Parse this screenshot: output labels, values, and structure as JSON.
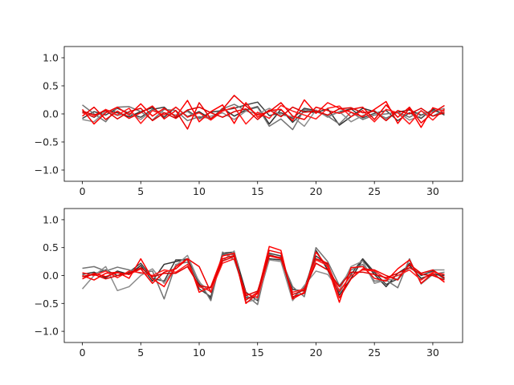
{
  "chart_data": [
    {
      "type": "line",
      "title": "",
      "xlabel": "",
      "ylabel": "",
      "xlim": [
        -1.55,
        32.55
      ],
      "ylim": [
        -1.2,
        1.2
      ],
      "xticks": [
        0,
        5,
        10,
        15,
        20,
        25,
        30
      ],
      "yticks": [
        -1.0,
        -0.5,
        0.0,
        0.5,
        1.0
      ],
      "xtick_labels": [
        "0",
        "5",
        "10",
        "15",
        "20",
        "25",
        "30"
      ],
      "ytick_labels": [
        "−1.0",
        "−0.5",
        "0.0",
        "0.5",
        "1.0"
      ],
      "grid": false,
      "x": [
        0,
        1,
        2,
        3,
        4,
        5,
        6,
        7,
        8,
        9,
        10,
        11,
        12,
        13,
        14,
        15,
        16,
        17,
        18,
        19,
        20,
        21,
        22,
        23,
        24,
        25,
        26,
        27,
        28,
        29,
        30,
        31
      ],
      "series": [
        {
          "color": "#333333",
          "values": [
            0.03,
            -0.06,
            0.07,
            0.02,
            -0.05,
            0.04,
            0.11,
            -0.06,
            0.12,
            -0.05,
            0.04,
            -0.09,
            0.1,
            -0.04,
            0.07,
            0.13,
            -0.18,
            0.08,
            -0.15,
            0.05,
            0.02,
            0.09,
            -0.2,
            -0.05,
            0.1,
            0.04,
            -0.08,
            0.03,
            0.07,
            -0.02,
            0.06,
            0.01
          ]
        },
        {
          "color": "#404040",
          "values": [
            -0.08,
            0.04,
            -0.02,
            0.1,
            0.01,
            -0.06,
            0.08,
            0.12,
            -0.06,
            0.06,
            -0.08,
            0.03,
            0.06,
            0.1,
            0.16,
            0.21,
            -0.03,
            0.02,
            -0.08,
            0.1,
            0.06,
            -0.05,
            0.04,
            0.09,
            -0.07,
            0.01,
            0.06,
            -0.12,
            0.02,
            -0.08,
            0.09,
            -0.02
          ]
        },
        {
          "color": "#737373",
          "values": [
            0.16,
            0.0,
            -0.14,
            0.12,
            0.13,
            0.04,
            -0.11,
            0.08,
            0.06,
            -0.12,
            -0.05,
            -0.08,
            0.09,
            0.17,
            0.06,
            0.12,
            -0.22,
            -0.09,
            -0.28,
            0.08,
            0.04,
            -0.04,
            -0.18,
            0.03,
            -0.1,
            -0.02,
            0.0,
            0.03,
            -0.06,
            0.05,
            -0.04,
            0.07
          ]
        },
        {
          "color": "#8c8c8c",
          "values": [
            -0.1,
            -0.14,
            0.05,
            -0.03,
            0.02,
            -0.1,
            0.07,
            0.02,
            -0.02,
            0.04,
            -0.09,
            -0.04,
            0.02,
            -0.1,
            0.05,
            0.0,
            0.1,
            -0.02,
            -0.05,
            -0.22,
            0.07,
            -0.06,
            0.04,
            -0.14,
            -0.03,
            0.06,
            -0.09,
            0.03,
            -0.11,
            -0.03,
            0.04,
            0.1
          ]
        },
        {
          "color": "#ff0000",
          "values": [
            0.08,
            -0.18,
            0.02,
            0.12,
            -0.02,
            0.18,
            -0.04,
            0.1,
            -0.05,
            0.24,
            -0.14,
            0.04,
            0.16,
            -0.17,
            0.2,
            -0.06,
            0.06,
            0.08,
            -0.12,
            0.25,
            0.01,
            0.2,
            0.1,
            0.03,
            -0.05,
            0.08,
            0.22,
            -0.17,
            0.1,
            -0.24,
            0.11,
            0.04
          ]
        },
        {
          "color": "#ee0000",
          "values": [
            -0.04,
            0.12,
            -0.1,
            0.05,
            -0.08,
            0.02,
            0.14,
            -0.09,
            0.06,
            -0.27,
            0.2,
            -0.09,
            0.08,
            0.33,
            0.14,
            -0.02,
            0.04,
            0.2,
            -0.04,
            -0.1,
            0.12,
            0.06,
            0.01,
            0.08,
            0.12,
            -0.1,
            0.16,
            -0.06,
            0.12,
            -0.16,
            0.02,
            0.15
          ]
        },
        {
          "color": "#ff1a1a",
          "values": [
            0.02,
            -0.05,
            0.08,
            -0.02,
            0.1,
            -0.17,
            0.06,
            -0.02,
            0.12,
            -0.06,
            0.02,
            -0.11,
            0.05,
            0.12,
            -0.18,
            0.03,
            -0.08,
            0.15,
            0.05,
            -0.02,
            -0.09,
            0.1,
            0.14,
            -0.05,
            0.06,
            -0.14,
            0.08,
            0.02,
            -0.18,
            0.06,
            -0.11,
            0.09
          ]
        },
        {
          "color": "#dd0000",
          "values": [
            0.05,
            -0.02,
            0.06,
            -0.09,
            0.04,
            0.1,
            -0.12,
            0.02,
            -0.08,
            0.07,
            0.12,
            0.02,
            -0.06,
            0.04,
            0.09,
            -0.1,
            0.07,
            -0.05,
            0.12,
            0.03,
            0.05,
            -0.02,
            0.09,
            0.11,
            0.02,
            0.05,
            -0.12,
            0.06,
            0.0,
            0.1,
            -0.04,
            0.02
          ]
        }
      ]
    },
    {
      "type": "line",
      "title": "",
      "xlabel": "",
      "ylabel": "",
      "xlim": [
        -1.55,
        32.55
      ],
      "ylim": [
        -1.2,
        1.2
      ],
      "xticks": [
        0,
        5,
        10,
        15,
        20,
        25,
        30
      ],
      "yticks": [
        -1.0,
        -0.5,
        0.0,
        0.5,
        1.0
      ],
      "xtick_labels": [
        "0",
        "5",
        "10",
        "15",
        "20",
        "25",
        "30"
      ],
      "ytick_labels": [
        "−1.0",
        "−0.5",
        "0.0",
        "0.5",
        "1.0"
      ],
      "grid": false,
      "x": [
        0,
        1,
        2,
        3,
        4,
        5,
        6,
        7,
        8,
        9,
        10,
        11,
        12,
        13,
        14,
        15,
        16,
        17,
        18,
        19,
        20,
        21,
        22,
        23,
        24,
        25,
        26,
        27,
        28,
        29,
        30,
        31
      ],
      "series": [
        {
          "color": "#333333",
          "values": [
            0.02,
            0.06,
            -0.04,
            0.08,
            0.02,
            0.18,
            -0.1,
            0.2,
            0.25,
            0.3,
            -0.15,
            -0.42,
            0.4,
            0.42,
            -0.3,
            -0.45,
            0.3,
            0.28,
            -0.25,
            -0.28,
            0.45,
            0.1,
            -0.35,
            -0.05,
            0.28,
            0.02,
            -0.2,
            0.04,
            0.18,
            -0.05,
            0.02,
            0.0
          ]
        },
        {
          "color": "#404040",
          "values": [
            -0.02,
            0.03,
            0.1,
            0.0,
            0.06,
            0.22,
            -0.05,
            -0.1,
            0.28,
            0.28,
            -0.24,
            -0.38,
            0.38,
            0.38,
            -0.4,
            -0.38,
            0.4,
            0.35,
            -0.4,
            -0.22,
            0.35,
            0.2,
            -0.3,
            0.02,
            0.3,
            0.06,
            -0.16,
            -0.06,
            0.22,
            0.0,
            0.08,
            -0.06
          ]
        },
        {
          "color": "#737373",
          "values": [
            0.13,
            0.16,
            0.08,
            0.15,
            0.1,
            0.04,
            0.08,
            -0.42,
            0.2,
            0.24,
            -0.1,
            -0.45,
            0.42,
            0.28,
            -0.35,
            -0.52,
            0.38,
            0.3,
            -0.2,
            -0.38,
            0.5,
            0.25,
            -0.18,
            0.1,
            0.2,
            -0.1,
            -0.08,
            -0.22,
            0.3,
            -0.15,
            0.02,
            0.06
          ]
        },
        {
          "color": "#8c8c8c",
          "values": [
            -0.24,
            0.0,
            0.16,
            -0.27,
            -0.2,
            0.0,
            0.12,
            -0.14,
            0.18,
            0.36,
            -0.12,
            -0.3,
            0.26,
            0.44,
            -0.48,
            -0.42,
            0.28,
            0.25,
            -0.45,
            -0.18,
            0.08,
            0.02,
            -0.26,
            0.16,
            0.26,
            -0.14,
            -0.08,
            -0.06,
            0.14,
            0.04,
            0.1,
            0.1
          ]
        },
        {
          "color": "#ff0000",
          "values": [
            0.0,
            -0.08,
            0.04,
            0.06,
            -0.05,
            0.3,
            -0.06,
            -0.2,
            0.16,
            0.3,
            -0.3,
            -0.2,
            0.35,
            0.4,
            -0.5,
            -0.32,
            0.52,
            0.45,
            -0.42,
            -0.3,
            0.42,
            0.15,
            -0.48,
            0.14,
            0.16,
            -0.05,
            -0.1,
            0.12,
            0.28,
            -0.14,
            0.04,
            -0.12
          ]
        },
        {
          "color": "#ee0000",
          "values": [
            -0.06,
            0.04,
            -0.02,
            0.05,
            0.02,
            0.12,
            -0.14,
            0.06,
            0.12,
            0.3,
            0.16,
            -0.3,
            0.3,
            0.36,
            -0.44,
            -0.3,
            0.45,
            0.4,
            -0.38,
            -0.32,
            0.3,
            0.22,
            -0.4,
            -0.06,
            0.12,
            0.1,
            0.0,
            -0.08,
            0.2,
            0.04,
            0.1,
            -0.04
          ]
        },
        {
          "color": "#ff1a1a",
          "values": [
            0.05,
            0.0,
            0.08,
            -0.04,
            0.08,
            0.05,
            0.0,
            0.1,
            0.06,
            0.2,
            -0.2,
            -0.28,
            0.22,
            0.3,
            -0.32,
            -0.4,
            0.35,
            0.3,
            -0.3,
            -0.24,
            0.28,
            0.18,
            -0.28,
            0.0,
            0.1,
            0.08,
            -0.06,
            0.0,
            0.1,
            -0.08,
            0.06,
            0.02
          ]
        },
        {
          "color": "#dd0000",
          "values": [
            -0.02,
            0.02,
            -0.06,
            0.0,
            0.04,
            0.14,
            -0.02,
            0.04,
            0.04,
            0.16,
            -0.18,
            -0.22,
            0.26,
            0.34,
            -0.36,
            -0.28,
            0.36,
            0.32,
            -0.34,
            -0.26,
            0.22,
            0.1,
            -0.2,
            0.06,
            0.06,
            0.02,
            -0.04,
            0.04,
            0.14,
            0.02,
            0.0,
            -0.08
          ]
        }
      ]
    }
  ]
}
